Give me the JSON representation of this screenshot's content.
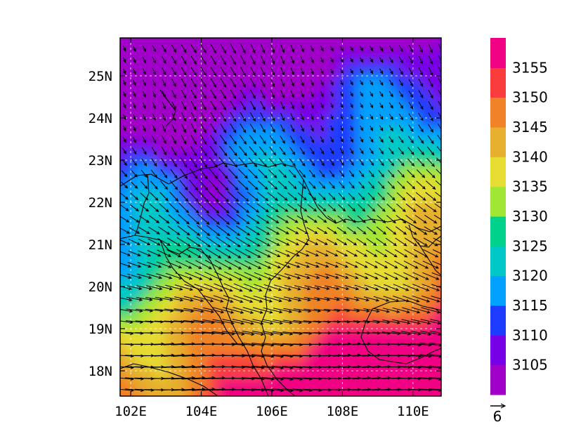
{
  "map": {
    "lon_range": [
      101.7,
      110.8
    ],
    "lat_range": [
      17.4,
      25.9
    ],
    "x_ticks": [
      {
        "value": 102,
        "label": "102E"
      },
      {
        "value": 104,
        "label": "104E"
      },
      {
        "value": 106,
        "label": "106E"
      },
      {
        "value": 108,
        "label": "108E"
      },
      {
        "value": 110,
        "label": "110E"
      }
    ],
    "y_ticks": [
      {
        "value": 18,
        "label": "18N"
      },
      {
        "value": 19,
        "label": "19N"
      },
      {
        "value": 20,
        "label": "20N"
      },
      {
        "value": 21,
        "label": "21N"
      },
      {
        "value": 22,
        "label": "22N"
      },
      {
        "value": 23,
        "label": "23N"
      },
      {
        "value": 24,
        "label": "24N"
      },
      {
        "value": 25,
        "label": "25N"
      }
    ],
    "gridlines": "dashed",
    "coastlines": true
  },
  "colorbar": {
    "levels": [
      3105,
      3110,
      3115,
      3120,
      3125,
      3130,
      3135,
      3140,
      3145,
      3150,
      3155
    ],
    "colors": [
      "#a000c8",
      "#7800e6",
      "#1e3cff",
      "#00a0ff",
      "#00c8c8",
      "#00d28c",
      "#a0e632",
      "#e6dc32",
      "#e6af2d",
      "#f08228",
      "#fa3c3c",
      "#f00082"
    ],
    "orientation": "vertical",
    "position": "right"
  },
  "reference_vector": {
    "label": "6"
  }
}
